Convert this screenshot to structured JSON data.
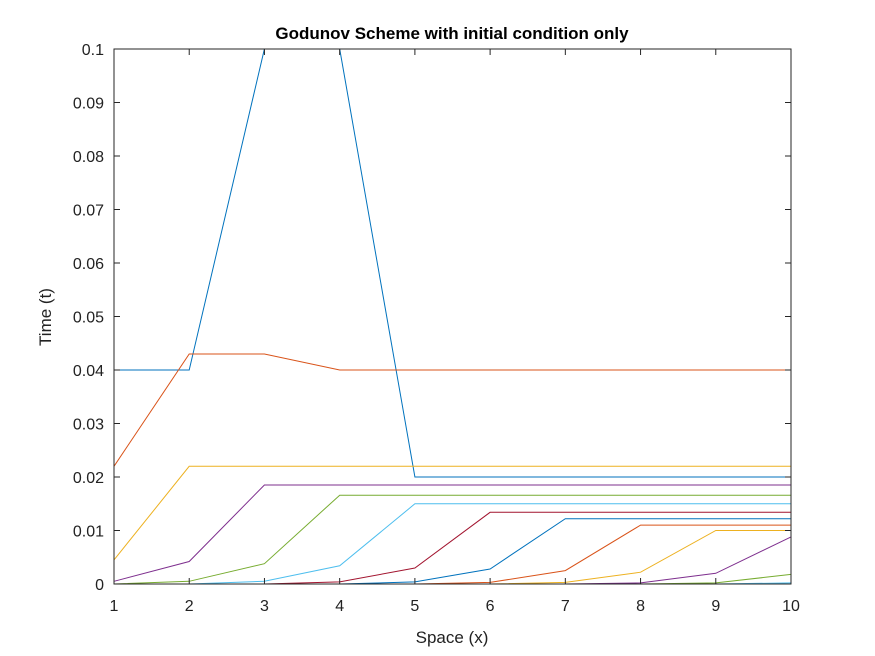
{
  "chart_data": {
    "type": "line",
    "title": "Godunov Scheme with initial condition only",
    "xlabel": "Space (x)",
    "ylabel": "Time (t)",
    "xlim": [
      1,
      10
    ],
    "ylim": [
      0,
      0.1
    ],
    "xticks": [
      "1",
      "2",
      "3",
      "4",
      "5",
      "6",
      "7",
      "8",
      "9",
      "10"
    ],
    "yticks": [
      "0",
      "0.01",
      "0.02",
      "0.03",
      "0.04",
      "0.05",
      "0.06",
      "0.07",
      "0.08",
      "0.09",
      "0.1"
    ],
    "grid": false,
    "x": [
      1,
      2,
      3,
      4,
      5,
      6,
      7,
      8,
      9,
      10
    ],
    "series": [
      {
        "color": "#0072BD",
        "values": [
          0.04,
          0.04,
          0.1,
          0.1,
          0.02,
          0.02,
          0.02,
          0.02,
          0.02,
          0.02
        ]
      },
      {
        "color": "#D95319",
        "values": [
          0.022,
          0.043,
          0.043,
          0.04,
          0.04,
          0.04,
          0.04,
          0.04,
          0.04,
          0.04
        ]
      },
      {
        "color": "#EDB120",
        "values": [
          0.0045,
          0.022,
          0.022,
          0.022,
          0.022,
          0.022,
          0.022,
          0.022,
          0.022,
          0.022
        ]
      },
      {
        "color": "#7E2F8E",
        "values": [
          0.0005,
          0.0042,
          0.0185,
          0.0185,
          0.0185,
          0.0185,
          0.0185,
          0.0185,
          0.0185,
          0.0185
        ]
      },
      {
        "color": "#77AC30",
        "values": [
          0.0,
          0.0005,
          0.0038,
          0.0166,
          0.0166,
          0.0166,
          0.0166,
          0.0166,
          0.0166,
          0.0166
        ]
      },
      {
        "color": "#4DBEEE",
        "values": [
          0.0,
          0.0,
          0.0005,
          0.0034,
          0.015,
          0.015,
          0.015,
          0.015,
          0.015,
          0.015
        ]
      },
      {
        "color": "#A2142F",
        "values": [
          0.0,
          0.0,
          0.0,
          0.0004,
          0.003,
          0.0134,
          0.0134,
          0.0134,
          0.0134,
          0.0134
        ]
      },
      {
        "color": "#0072BD",
        "values": [
          0.0,
          0.0,
          0.0,
          0.0,
          0.0004,
          0.0028,
          0.0122,
          0.0122,
          0.0122,
          0.0122
        ]
      },
      {
        "color": "#D95319",
        "values": [
          0.0,
          0.0,
          0.0,
          0.0,
          0.0,
          0.0003,
          0.0025,
          0.011,
          0.011,
          0.011
        ]
      },
      {
        "color": "#EDB120",
        "values": [
          0.0,
          0.0,
          0.0,
          0.0,
          0.0,
          0.0,
          0.0003,
          0.0022,
          0.01,
          0.01
        ]
      },
      {
        "color": "#7E2F8E",
        "values": [
          0.0,
          0.0,
          0.0,
          0.0,
          0.0,
          0.0,
          0.0,
          0.0002,
          0.002,
          0.0088
        ]
      },
      {
        "color": "#77AC30",
        "values": [
          0.0,
          0.0,
          0.0,
          0.0,
          0.0,
          0.0,
          0.0,
          0.0,
          0.0002,
          0.0018
        ]
      },
      {
        "color": "#4DBEEE",
        "values": [
          0.0,
          0.0,
          0.0,
          0.0,
          0.0,
          0.0,
          0.0,
          0.0,
          0.0,
          0.0002
        ]
      }
    ]
  }
}
